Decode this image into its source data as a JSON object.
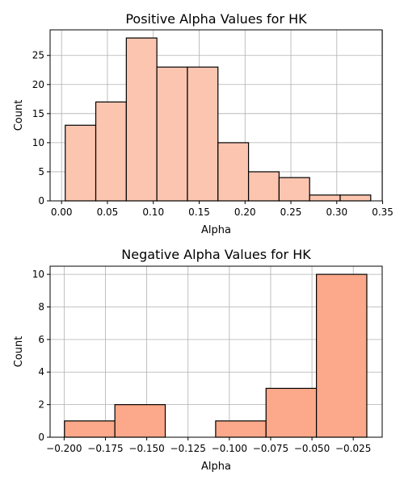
{
  "chart_data": [
    {
      "type": "bar",
      "title": "Positive Alpha Values for HK",
      "xlabel": "Alpha",
      "ylabel": "Count",
      "xlim": [
        -0.0125,
        0.3495
      ],
      "ylim": [
        0,
        29.4
      ],
      "xticks": [
        0.0,
        0.05,
        0.1,
        0.15,
        0.2,
        0.25,
        0.3,
        0.35
      ],
      "xtick_labels": [
        "0.00",
        "0.05",
        "0.10",
        "0.15",
        "0.20",
        "0.25",
        "0.30",
        "0.35"
      ],
      "yticks": [
        0,
        5,
        10,
        15,
        20,
        25
      ],
      "ytick_labels": [
        "0",
        "5",
        "10",
        "15",
        "20",
        "25"
      ],
      "bin_edges": [
        0.004,
        0.0373,
        0.0706,
        0.1039,
        0.1372,
        0.1705,
        0.2038,
        0.2371,
        0.2704,
        0.3037,
        0.337
      ],
      "values": [
        13,
        17,
        28,
        23,
        23,
        10,
        5,
        4,
        1,
        1
      ],
      "bar_color": "#fcc5b0",
      "edge_color": "#000000",
      "grid": true
    },
    {
      "type": "bar",
      "title": "Negative Alpha Values for HK",
      "xlabel": "Alpha",
      "ylabel": "Count",
      "xlim": [
        -0.2085,
        -0.0075
      ],
      "ylim": [
        0,
        10.5
      ],
      "xticks": [
        -0.2,
        -0.175,
        -0.15,
        -0.125,
        -0.1,
        -0.075,
        -0.05,
        -0.025
      ],
      "xtick_labels": [
        "−0.200",
        "−0.175",
        "−0.150",
        "−0.125",
        "−0.100",
        "−0.075",
        "−0.050",
        "−0.025"
      ],
      "yticks": [
        0,
        2,
        4,
        6,
        8,
        10
      ],
      "ytick_labels": [
        "0",
        "2",
        "4",
        "6",
        "8",
        "10"
      ],
      "bin_edges": [
        -0.1998,
        -0.1693,
        -0.1388,
        -0.1083,
        -0.0778,
        -0.0473,
        -0.0168
      ],
      "values": [
        1,
        2,
        0,
        1,
        3,
        10
      ],
      "bar_color": "#fca88a",
      "edge_color": "#000000",
      "grid": true
    }
  ]
}
